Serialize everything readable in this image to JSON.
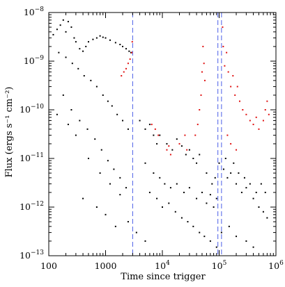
{
  "chart_data": {
    "type": "scatter",
    "title": "",
    "xlabel": "Time since trigger",
    "ylabel": "Flux (ergs s⁻¹ cm⁻²)",
    "x_scale": "log",
    "y_scale": "log",
    "xlim": [
      100,
      1000000
    ],
    "ylim": [
      1e-13,
      1e-08
    ],
    "x_ticks": [
      {
        "value": 100,
        "label": "100"
      },
      {
        "value": 1000,
        "label": "1000"
      },
      {
        "value": 10000,
        "label": "10",
        "exp": "4"
      },
      {
        "value": 100000,
        "label": "10",
        "exp": "5"
      },
      {
        "value": 1000000,
        "label": "10",
        "exp": "6"
      }
    ],
    "y_ticks": [
      {
        "value": 1e-13,
        "label": "10",
        "exp": "−13"
      },
      {
        "value": 1e-12,
        "label": "10",
        "exp": "−12"
      },
      {
        "value": 1e-11,
        "label": "10",
        "exp": "−11"
      },
      {
        "value": 1e-10,
        "label": "10",
        "exp": "−10"
      },
      {
        "value": 1e-09,
        "label": "10",
        "exp": "−9"
      },
      {
        "value": 1e-08,
        "label": "10",
        "exp": "−8"
      }
    ],
    "grid": false,
    "legend": "none",
    "vertical_lines": [
      {
        "x": 3000,
        "color": "#4a5ee8",
        "style": "dashed"
      },
      {
        "x": 95000,
        "color": "#4a5ee8",
        "style": "dashed"
      },
      {
        "x": 110000,
        "color": "#4a5ee8",
        "style": "dashed"
      }
    ],
    "series": [
      {
        "color": "#000000",
        "points": [
          [
            120,
            3.5e-09
          ],
          [
            140,
            4.5e-09
          ],
          [
            160,
            5.5e-09
          ],
          [
            180,
            7e-09
          ],
          [
            200,
            4e-09
          ],
          [
            220,
            6.5e-09
          ],
          [
            250,
            5e-09
          ],
          [
            280,
            3e-09
          ],
          [
            300,
            2.5e-09
          ],
          [
            350,
            1.8e-09
          ],
          [
            400,
            1.6e-09
          ],
          [
            450,
            2e-09
          ],
          [
            500,
            2.5e-09
          ],
          [
            600,
            2.8e-09
          ],
          [
            700,
            3e-09
          ],
          [
            800,
            3.3e-09
          ],
          [
            900,
            3.1e-09
          ],
          [
            1000,
            3e-09
          ],
          [
            1200,
            2.7e-09
          ],
          [
            1500,
            2.4e-09
          ],
          [
            1800,
            2.2e-09
          ],
          [
            2000,
            2e-09
          ],
          [
            2300,
            1.8e-09
          ],
          [
            2600,
            1.6e-09
          ],
          [
            2800,
            1.5e-09
          ],
          [
            150,
            1.5e-09
          ],
          [
            200,
            1.2e-09
          ],
          [
            260,
            9e-10
          ],
          [
            330,
            7e-10
          ],
          [
            420,
            5e-10
          ],
          [
            550,
            4e-10
          ],
          [
            700,
            3e-10
          ],
          [
            900,
            2e-10
          ],
          [
            1100,
            1.5e-10
          ],
          [
            1300,
            1.2e-10
          ],
          [
            1600,
            8e-11
          ],
          [
            2000,
            6e-11
          ],
          [
            2500,
            4e-11
          ],
          [
            180,
            2e-10
          ],
          [
            250,
            1e-10
          ],
          [
            350,
            6e-11
          ],
          [
            480,
            4e-11
          ],
          [
            650,
            2.5e-11
          ],
          [
            850,
            1.5e-11
          ],
          [
            1100,
            9e-12
          ],
          [
            1400,
            6e-12
          ],
          [
            1800,
            4e-12
          ],
          [
            2300,
            2.5e-12
          ],
          [
            300,
            3e-11
          ],
          [
            500,
            1e-11
          ],
          [
            800,
            5e-12
          ],
          [
            1200,
            3e-12
          ],
          [
            1800,
            1.8e-12
          ],
          [
            400,
            1.5e-12
          ],
          [
            700,
            1e-12
          ],
          [
            1000,
            7e-13
          ],
          [
            140,
            8e-11
          ],
          [
            220,
            5e-11
          ],
          [
            4000,
            6e-11
          ],
          [
            5000,
            4e-11
          ],
          [
            6000,
            5e-11
          ],
          [
            7000,
            3e-11
          ],
          [
            8000,
            2e-11
          ],
          [
            9000,
            3e-11
          ],
          [
            12000,
            2e-11
          ],
          [
            15000,
            1.5e-11
          ],
          [
            18000,
            2.5e-11
          ],
          [
            22000,
            1.8e-11
          ],
          [
            26000,
            1.2e-11
          ],
          [
            30000,
            1.5e-11
          ],
          [
            35000,
            1e-11
          ],
          [
            40000,
            8e-12
          ],
          [
            45000,
            1.2e-11
          ],
          [
            5000,
            8e-12
          ],
          [
            7000,
            5e-12
          ],
          [
            9000,
            4e-12
          ],
          [
            11000,
            3e-12
          ],
          [
            14000,
            2.5e-12
          ],
          [
            18000,
            3e-12
          ],
          [
            24000,
            2e-12
          ],
          [
            30000,
            2.5e-12
          ],
          [
            40000,
            1.5e-12
          ],
          [
            50000,
            2e-12
          ],
          [
            60000,
            1.2e-12
          ],
          [
            70000,
            1.8e-12
          ],
          [
            80000,
            1e-12
          ],
          [
            90000,
            1.5e-12
          ],
          [
            100000,
            8e-12
          ],
          [
            120000,
            6e-12
          ],
          [
            140000,
            4e-12
          ],
          [
            160000,
            5e-12
          ],
          [
            200000,
            3e-12
          ],
          [
            250000,
            2e-12
          ],
          [
            300000,
            2.5e-12
          ],
          [
            400000,
            1.5e-12
          ],
          [
            500000,
            1e-12
          ],
          [
            600000,
            8e-13
          ],
          [
            700000,
            6e-13
          ],
          [
            6000,
            2e-12
          ],
          [
            8000,
            1.5e-12
          ],
          [
            10000,
            1e-12
          ],
          [
            13000,
            1.2e-12
          ],
          [
            17000,
            8e-13
          ],
          [
            22000,
            6e-13
          ],
          [
            28000,
            5e-13
          ],
          [
            35000,
            4e-13
          ],
          [
            45000,
            3e-13
          ],
          [
            55000,
            2.5e-13
          ],
          [
            70000,
            2e-13
          ],
          [
            90000,
            1.5e-13
          ],
          [
            110000,
            3e-13
          ],
          [
            150000,
            4e-13
          ],
          [
            200000,
            2.5e-13
          ],
          [
            300000,
            2e-13
          ],
          [
            400000,
            1.5e-13
          ],
          [
            3500,
            3e-13
          ],
          [
            5000,
            2e-13
          ],
          [
            2500,
            5e-13
          ],
          [
            1500,
            4e-13
          ],
          [
            60000,
            5e-12
          ],
          [
            75000,
            3e-12
          ],
          [
            85000,
            4e-12
          ],
          [
            130000,
            1e-11
          ],
          [
            180000,
            8e-12
          ],
          [
            220000,
            5e-12
          ],
          [
            280000,
            4e-12
          ],
          [
            350000,
            3e-12
          ],
          [
            450000,
            2e-12
          ],
          [
            550000,
            3e-12
          ],
          [
            650000,
            2e-12
          ]
        ]
      },
      {
        "color": "#e01010",
        "points": [
          [
            1900,
            5e-10
          ],
          [
            2100,
            6e-10
          ],
          [
            2300,
            7e-10
          ],
          [
            2500,
            9e-10
          ],
          [
            2700,
            1.1e-09
          ],
          [
            2900,
            1.5e-09
          ],
          [
            2950,
            2.5e-09
          ],
          [
            6500,
            5e-11
          ],
          [
            7500,
            4e-11
          ],
          [
            8500,
            3e-11
          ],
          [
            12000,
            1.5e-11
          ],
          [
            13000,
            1.8e-11
          ],
          [
            14000,
            1.2e-11
          ],
          [
            20000,
            2e-11
          ],
          [
            25000,
            3e-11
          ],
          [
            27000,
            1.5e-11
          ],
          [
            38000,
            3e-11
          ],
          [
            42000,
            5e-11
          ],
          [
            45000,
            1e-10
          ],
          [
            48000,
            2e-10
          ],
          [
            50000,
            6e-10
          ],
          [
            52000,
            2e-09
          ],
          [
            54000,
            9e-10
          ],
          [
            56000,
            4e-10
          ],
          [
            115000,
            5e-09
          ],
          [
            118000,
            2e-09
          ],
          [
            125000,
            8e-10
          ],
          [
            135000,
            1.5e-09
          ],
          [
            145000,
            6e-10
          ],
          [
            160000,
            3e-10
          ],
          [
            175000,
            5e-10
          ],
          [
            190000,
            2e-10
          ],
          [
            210000,
            3e-10
          ],
          [
            230000,
            1.5e-10
          ],
          [
            260000,
            1e-10
          ],
          [
            300000,
            8e-11
          ],
          [
            350000,
            6e-11
          ],
          [
            400000,
            5e-11
          ],
          [
            450000,
            7e-11
          ],
          [
            500000,
            4e-11
          ],
          [
            600000,
            6e-11
          ],
          [
            650000,
            1e-10
          ],
          [
            700000,
            1.5e-10
          ],
          [
            750000,
            8e-11
          ],
          [
            140000,
            3e-11
          ],
          [
            160000,
            2e-11
          ],
          [
            200000,
            1.5e-11
          ]
        ]
      }
    ]
  }
}
